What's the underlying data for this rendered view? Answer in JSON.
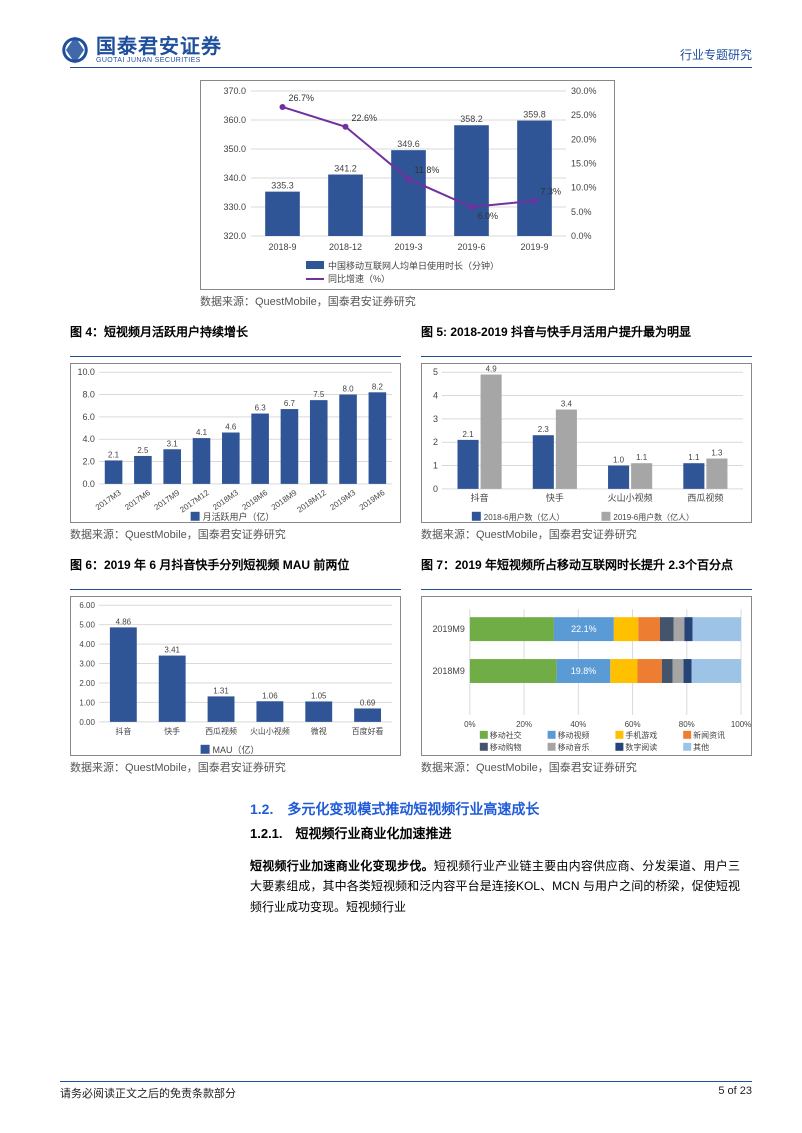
{
  "header": {
    "logo_cn": "国泰君安证券",
    "logo_en": "GUOTAI JUNAN SECURITIES",
    "right": "行业专题研究"
  },
  "chart3": {
    "type": "bar+line",
    "categories": [
      "2018-9",
      "2018-12",
      "2019-3",
      "2019-6",
      "2019-9"
    ],
    "bars": [
      335.3,
      341.2,
      349.6,
      358.2,
      359.8
    ],
    "line": [
      26.7,
      22.6,
      11.8,
      6.0,
      7.3
    ],
    "ylim_left": [
      320,
      370
    ],
    "ytick_left_step": 10,
    "ylim_right": [
      0,
      30
    ],
    "ytick_right_step": 5,
    "bar_color": "#2f5597",
    "line_color": "#7030a0",
    "legend": [
      "中国移动互联网人均单日使用时长（分钟）",
      "同比增速（%）"
    ],
    "grid_color": "#d9d9d9"
  },
  "source_text": "数据来源：QuestMobile，国泰君安证券研究",
  "fig4": {
    "title": "图 4：短视频月活跃用户持续增长",
    "type": "bar",
    "categories": [
      "2017M3",
      "2017M6",
      "2017M9",
      "2017M12",
      "2018M3",
      "2018M6",
      "2018M9",
      "2018M12",
      "2019M3",
      "2019M6"
    ],
    "values": [
      2.1,
      2.5,
      3.1,
      4.1,
      4.6,
      6.3,
      6.7,
      7.5,
      8.0,
      8.2
    ],
    "ylim": [
      0,
      10
    ],
    "ytick_step": 2,
    "bar_color": "#2f5597",
    "legend": "月活跃用户（亿）"
  },
  "fig5": {
    "title": "图 5: 2018-2019 抖音与快手月活用户提升最为明显",
    "type": "grouped-bar",
    "categories": [
      "抖音",
      "快手",
      "火山小视频",
      "西瓜视频"
    ],
    "series_a": {
      "name": "2018-6用户数（亿人）",
      "values": [
        2.1,
        2.3,
        1.0,
        1.1
      ],
      "color": "#2f5597"
    },
    "series_b": {
      "name": "2019-6用户数（亿人）",
      "values": [
        4.9,
        3.4,
        1.1,
        1.3
      ],
      "color": "#a6a6a6"
    },
    "ylim": [
      0,
      5
    ],
    "ytick_step": 1
  },
  "fig6": {
    "title": "图 6：2019 年 6 月抖音快手分列短视频 MAU 前两位",
    "type": "bar",
    "categories": [
      "抖音",
      "快手",
      "西瓜视频",
      "火山小视频",
      "微视",
      "百度好看"
    ],
    "values": [
      4.86,
      3.41,
      1.31,
      1.06,
      1.05,
      0.69
    ],
    "ylim": [
      0,
      6
    ],
    "ytick_step": 1,
    "bar_color": "#2f5597",
    "legend": "MAU（亿）"
  },
  "fig7": {
    "title": "图 7：2019 年短视频所占移动互联网时长提升 2.3个百分点",
    "type": "stacked-bar-horizontal",
    "rows": [
      "2019M9",
      "2018M9"
    ],
    "labels_shown": {
      "2019M9": "22.1%",
      "2018M9": "19.8%"
    },
    "segments_2019": [
      {
        "name": "移动社交",
        "value": 31,
        "color": "#70ad47"
      },
      {
        "name": "移动视频",
        "value": 22.1,
        "color": "#5b9bd5"
      },
      {
        "name": "手机游戏",
        "value": 9,
        "color": "#ffc000"
      },
      {
        "name": "新闻资讯",
        "value": 8,
        "color": "#ed7d31"
      },
      {
        "name": "移动购物",
        "value": 5,
        "color": "#44546a"
      },
      {
        "name": "移动音乐",
        "value": 4,
        "color": "#a5a5a5"
      },
      {
        "name": "数字阅读",
        "value": 3,
        "color": "#264478"
      },
      {
        "name": "其他",
        "value": 17.9,
        "color": "#9dc3e6"
      }
    ],
    "segments_2018": [
      {
        "name": "移动社交",
        "value": 32,
        "color": "#70ad47"
      },
      {
        "name": "移动视频",
        "value": 19.8,
        "color": "#5b9bd5"
      },
      {
        "name": "手机游戏",
        "value": 10,
        "color": "#ffc000"
      },
      {
        "name": "新闻资讯",
        "value": 9,
        "color": "#ed7d31"
      },
      {
        "name": "移动购物",
        "value": 4,
        "color": "#44546a"
      },
      {
        "name": "移动音乐",
        "value": 4,
        "color": "#a5a5a5"
      },
      {
        "name": "数字阅读",
        "value": 3,
        "color": "#264478"
      },
      {
        "name": "其他",
        "value": 18.2,
        "color": "#9dc3e6"
      }
    ],
    "xticks": [
      "0%",
      "20%",
      "40%",
      "60%",
      "80%",
      "100%"
    ],
    "legend": [
      "移动社交",
      "移动视频",
      "手机游戏",
      "新闻资讯",
      "移动购物",
      "移动音乐",
      "数字阅读",
      "其他"
    ],
    "legend_colors": [
      "#70ad47",
      "#5b9bd5",
      "#ffc000",
      "#ed7d31",
      "#44546a",
      "#a5a5a5",
      "#264478",
      "#9dc3e6"
    ]
  },
  "section": {
    "h2": "1.2.　多元化变现模式推动短视频行业高速成长",
    "h3": "1.2.1.　短视频行业商业化加速推进",
    "para_lead": "短视频行业加速商业化变现步伐。",
    "para_rest": "短视频行业产业链主要由内容供应商、分发渠道、用户三大要素组成，其中各类短视频和泛内容平台是连接KOL、MCN 与用户之间的桥梁，促使短视频行业成功变现。短视频行业"
  },
  "footer": {
    "left": "请务必阅读正文之后的免责条款部分",
    "right": "5 of 23"
  }
}
